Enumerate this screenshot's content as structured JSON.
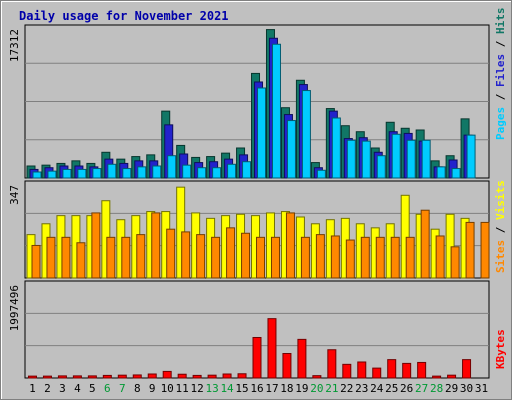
{
  "chart_data": {
    "type": "bar",
    "title": "Daily usage for November 2021",
    "days": [
      "1",
      "2",
      "3",
      "4",
      "5",
      "6",
      "7",
      "8",
      "9",
      "10",
      "11",
      "12",
      "13",
      "14",
      "15",
      "16",
      "17",
      "18",
      "19",
      "20",
      "21",
      "22",
      "23",
      "24",
      "25",
      "26",
      "27",
      "28",
      "29",
      "30",
      "31"
    ],
    "weekend_days": [
      "6",
      "7",
      "13",
      "14",
      "20",
      "21",
      "27",
      "28"
    ],
    "panels": [
      {
        "id": "top",
        "ymax_label": "17312",
        "ymax": 17312,
        "side_label": [
          {
            "text": "Pages",
            "color": "#00ccff"
          },
          {
            "text": " / ",
            "color": "#000000"
          },
          {
            "text": "Files",
            "color": "#2222cc"
          },
          {
            "text": " / ",
            "color": "#000000"
          },
          {
            "text": "Hits",
            "color": "#117766"
          }
        ],
        "series": [
          {
            "name": "Hits",
            "color": "#117766",
            "values": [
              1400,
              1500,
              1700,
              2000,
              1700,
              3000,
              2200,
              2500,
              2700,
              7800,
              3800,
              2400,
              2500,
              2900,
              3500,
              12200,
              17312,
              8200,
              11400,
              1800,
              8100,
              6100,
              5400,
              3500,
              6500,
              5800,
              5600,
              2000,
              2600,
              6900,
              0
            ]
          },
          {
            "name": "Files",
            "color": "#2222cc",
            "values": [
              1000,
              1200,
              1400,
              1400,
              1300,
              2200,
              1700,
              2000,
              2000,
              6200,
              2800,
              1800,
              1900,
              2200,
              2700,
              11200,
              16300,
              7400,
              10900,
              1200,
              7800,
              4600,
              4700,
              3000,
              5400,
              5200,
              4300,
              1300,
              2100,
              5000,
              0
            ]
          },
          {
            "name": "Pages",
            "color": "#00ccff",
            "values": [
              700,
              800,
              1000,
              1000,
              1100,
              1600,
              1100,
              1300,
              1400,
              2600,
              1500,
              1200,
              1200,
              1600,
              1900,
              10500,
              15600,
              6700,
              10200,
              900,
              7000,
              4400,
              4300,
              2600,
              5100,
              4400,
              4400,
              1300,
              1100,
              5000,
              0
            ]
          }
        ]
      },
      {
        "id": "middle",
        "ymax_label": "347",
        "ymax": 347,
        "side_label": [
          {
            "text": "Sites",
            "color": "#ff8800"
          },
          {
            "text": " / ",
            "color": "#000000"
          },
          {
            "text": "Visits",
            "color": "#ffff00"
          }
        ],
        "series": [
          {
            "name": "Visits",
            "color": "#ffff00",
            "values": [
              160,
              200,
              230,
              230,
              230,
              285,
              215,
              230,
              245,
              245,
              335,
              240,
              220,
              230,
              235,
              230,
              240,
              245,
              225,
              200,
              215,
              220,
              200,
              185,
              200,
              305,
              235,
              180,
              235,
              220,
              0
            ]
          },
          {
            "name": "Sites",
            "color": "#ff8800",
            "values": [
              120,
              150,
              150,
              130,
              240,
              150,
              150,
              160,
              240,
              180,
              170,
              160,
              150,
              185,
              165,
              150,
              150,
              240,
              150,
              160,
              155,
              140,
              150,
              150,
              150,
              150,
              250,
              155,
              115,
              205,
              205
            ]
          }
        ]
      },
      {
        "id": "bottom",
        "ymax_label": "1997496",
        "ymax": 1997496,
        "side_label": [
          {
            "text": "KBytes",
            "color": "#ff0000"
          }
        ],
        "series": [
          {
            "name": "KBytes",
            "color": "#ff0000",
            "values": [
              40000,
              40000,
              45000,
              45000,
              45000,
              55000,
              60000,
              65000,
              85000,
              140000,
              80000,
              55000,
              60000,
              85000,
              90000,
              860000,
              1260000,
              520000,
              820000,
              50000,
              600000,
              290000,
              340000,
              210000,
              390000,
              310000,
              330000,
              40000,
              60000,
              390000,
              0
            ]
          }
        ]
      }
    ]
  }
}
